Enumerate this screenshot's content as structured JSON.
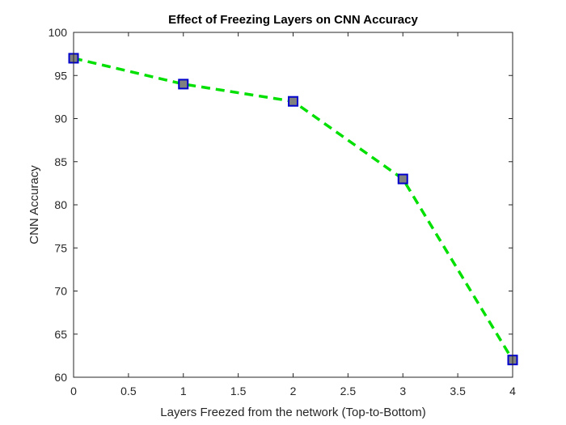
{
  "chart_data": {
    "type": "line",
    "title": "Effect of Freezing Layers on CNN Accuracy",
    "xlabel": "Layers Freezed from the network (Top-to-Bottom)",
    "ylabel": "CNN Accuracy",
    "x": [
      0,
      1,
      2,
      3,
      4
    ],
    "series": [
      {
        "name": "CNN Accuracy",
        "values": [
          97,
          94,
          92,
          83,
          62
        ],
        "line_style": "dashed",
        "line_color": "#00e000",
        "marker": "square",
        "marker_face_color": "#808080",
        "marker_edge_color": "#0000cc"
      }
    ],
    "xlim": [
      0,
      4
    ],
    "ylim": [
      60,
      100
    ],
    "xticks": [
      0,
      0.5,
      1,
      1.5,
      2,
      2.5,
      3,
      3.5,
      4
    ],
    "xtick_labels": [
      "0",
      "0.5",
      "1",
      "1.5",
      "2",
      "2.5",
      "3",
      "3.5",
      "4"
    ],
    "yticks": [
      60,
      65,
      70,
      75,
      80,
      85,
      90,
      95,
      100
    ],
    "ytick_labels": [
      "60",
      "65",
      "70",
      "75",
      "80",
      "85",
      "90",
      "95",
      "100"
    ],
    "grid": false,
    "legend": "none",
    "box": true
  }
}
